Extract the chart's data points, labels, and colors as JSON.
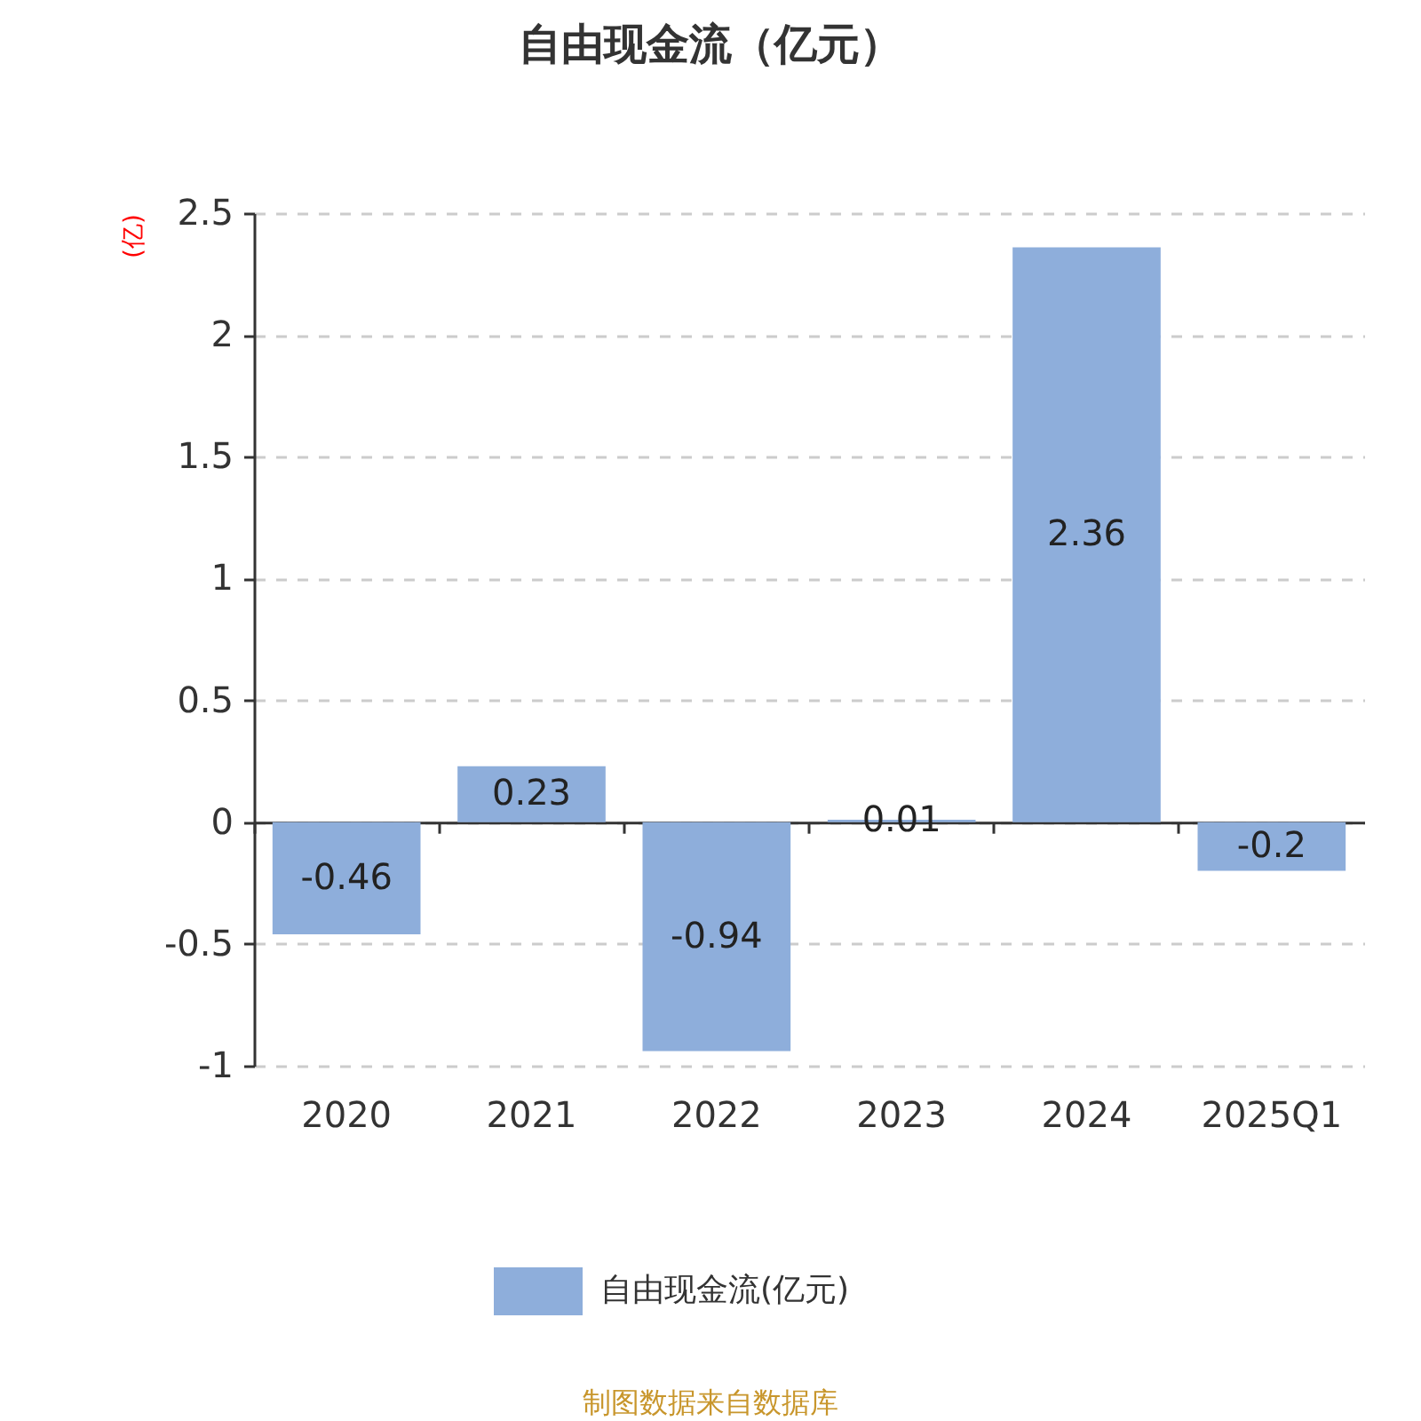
{
  "chart_data": {
    "type": "bar",
    "title": "自由现金流（亿元）",
    "ylabel": "(亿)",
    "categories": [
      "2020",
      "2021",
      "2022",
      "2023",
      "2024",
      "2025Q1"
    ],
    "series": [
      {
        "name": "自由现金流(亿元)",
        "color": "#8eaedb",
        "values": [
          -0.46,
          0.23,
          -0.94,
          0.01,
          2.36,
          -0.2
        ]
      }
    ],
    "ylim": [
      -1,
      2.5
    ],
    "yticks": [
      -1,
      -0.5,
      0,
      0.5,
      1,
      1.5,
      2,
      2.5
    ],
    "grid": "y",
    "legend": "bottom",
    "data_labels": true,
    "annotations": [
      "制图数据来自数据库"
    ]
  }
}
